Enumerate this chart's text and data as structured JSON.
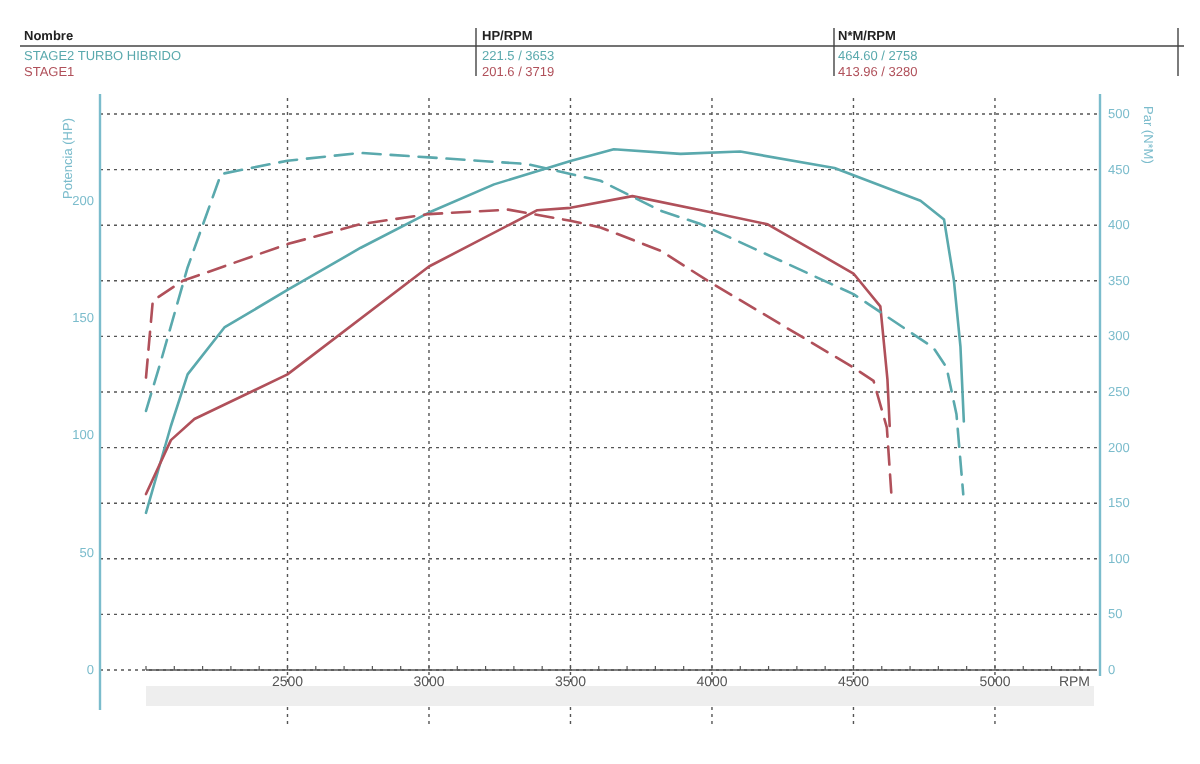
{
  "chart_data": {
    "type": "line",
    "xlabel": "RPM",
    "ylabel": "Potencia (HP)",
    "y2label": "Par (N*M)",
    "xlim": [
      2000,
      5350
    ],
    "xticks": [
      2500,
      3000,
      3500,
      4000,
      4500,
      5000
    ],
    "ylim": [
      0,
      237
    ],
    "yticks": [
      0,
      50,
      100,
      150,
      200
    ],
    "y2lim": [
      0,
      500
    ],
    "y2ticks": [
      0,
      50,
      100,
      150,
      200,
      250,
      300,
      350,
      400,
      450,
      500
    ],
    "grid": true,
    "legend": "top",
    "marker": "none",
    "annotations": [
      "Nombre",
      "HP/RPM",
      "N*M/RPM",
      "221.5 / 3653",
      "464.60 / 2758",
      "201.6 / 3719",
      "413.96 / 3280"
    ],
    "series": [
      {
        "name": "STAGE2 TURBO HIBRIDO",
        "color": "#5aa9ad",
        "line_style": "solid",
        "x": [
          2000,
          2088,
          2147,
          2277,
          2500,
          2759,
          3000,
          3230,
          3500,
          3653,
          3889,
          4100,
          4433,
          4737,
          4820,
          4855,
          4878,
          4890
        ],
        "values": [
          67,
          104,
          126,
          146,
          162,
          180,
          195,
          207,
          217,
          222,
          220,
          221,
          214,
          200,
          192,
          166,
          138,
          106
        ]
      },
      {
        "name": "STAGE1",
        "color": "#b0505a",
        "line_style": "solid",
        "x": [
          2000,
          2088,
          2171,
          2500,
          3000,
          3383,
          3500,
          3719,
          4000,
          4197,
          4500,
          4595,
          4620,
          4628
        ],
        "values": [
          75,
          98,
          107,
          126,
          172,
          196,
          197,
          202,
          195,
          190,
          169,
          155,
          124,
          104
        ]
      },
      {
        "color": "#5aa9ad",
        "axis": "y2",
        "line_style": "dashed",
        "x": [
          2000,
          2053,
          2147,
          2265,
          2500,
          2758,
          3000,
          3347,
          3500,
          3606,
          3819,
          3960,
          4500,
          4782,
          4829,
          4864,
          4888
        ],
        "values": [
          233,
          278,
          362,
          446,
          458,
          465,
          461,
          455,
          446,
          440,
          413,
          401,
          338,
          290,
          272,
          230,
          158
        ]
      },
      {
        "color": "#b0505a",
        "axis": "y2",
        "line_style": "dashed",
        "x": [
          2000,
          2024,
          2130,
          2500,
          2759,
          3000,
          3280,
          3500,
          3606,
          3819,
          3985,
          4500,
          4571,
          4618,
          4634
        ],
        "values": [
          263,
          332,
          350,
          383,
          401,
          410,
          414,
          404,
          398,
          377,
          350,
          272,
          260,
          218,
          158
        ]
      }
    ]
  }
}
